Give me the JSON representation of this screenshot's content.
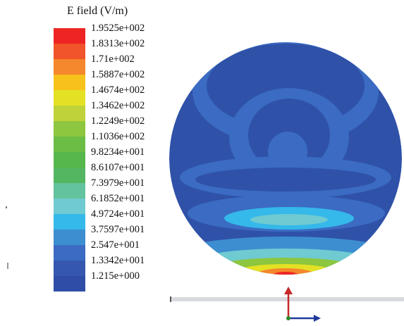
{
  "legend": {
    "title": "E field (V/m)",
    "entries": [
      {
        "label": "1.9525e+002",
        "color": "#ee2424"
      },
      {
        "label": "1.8313e+002",
        "color": "#f1532a"
      },
      {
        "label": "1.71e+002",
        "color": "#f5872c"
      },
      {
        "label": "1.5887e+002",
        "color": "#f7c21b"
      },
      {
        "label": "1.4674e+002",
        "color": "#e4e125"
      },
      {
        "label": "1.3462e+002",
        "color": "#bfd23a"
      },
      {
        "label": "1.2249e+002",
        "color": "#8dc63f"
      },
      {
        "label": "1.1036e+002",
        "color": "#6bbd45"
      },
      {
        "label": "9.8234e+001",
        "color": "#56b84c"
      },
      {
        "label": "8.6107e+001",
        "color": "#55b662"
      },
      {
        "label": "7.3979e+001",
        "color": "#63c39e"
      },
      {
        "label": "6.1852e+001",
        "color": "#6fcbd1"
      },
      {
        "label": "4.9724e+001",
        "color": "#35b8ea"
      },
      {
        "label": "3.7597e+001",
        "color": "#3d8ed0"
      },
      {
        "label": "2.547e+001",
        "color": "#3b6bc2"
      },
      {
        "label": "1.3342e+001",
        "color": "#3557b0"
      },
      {
        "label": "1.215e+000",
        "color": "#2f4da6"
      }
    ]
  },
  "colors": {
    "field_base": "#2f52a8",
    "axis_vertical": "#c62828",
    "axis_horizontal": "#1f3a9c",
    "axis_origin": "#2e8b2e",
    "ruler": "#d8dadf"
  }
}
